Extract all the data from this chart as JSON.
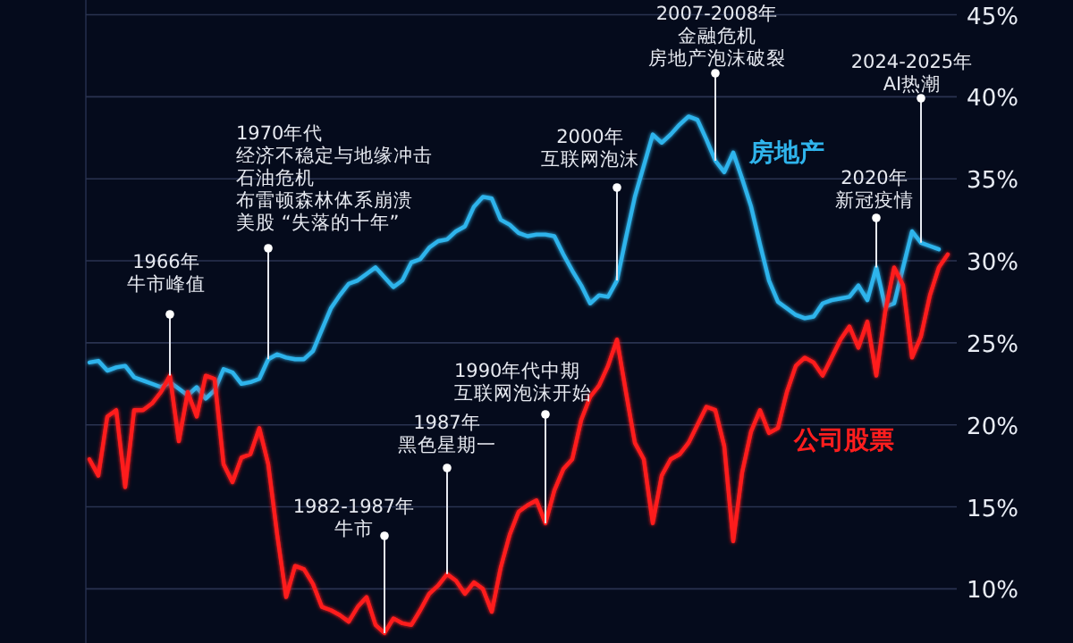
{
  "chart_data": {
    "type": "line",
    "categories": [
      null,
      null,
      null,
      null,
      null,
      null,
      null,
      null,
      null,
      null,
      null,
      null,
      null,
      null,
      null,
      null,
      null,
      null,
      null,
      null,
      null,
      null,
      null,
      null,
      null,
      null,
      null,
      null,
      null,
      null,
      null,
      null,
      null,
      null,
      null,
      null,
      null,
      null,
      null,
      null,
      null,
      null,
      null,
      null,
      null,
      null,
      null,
      null,
      null,
      null,
      null,
      null,
      null,
      null,
      null,
      null,
      null,
      null,
      null,
      null,
      null,
      null,
      null,
      null,
      null,
      null,
      null,
      null,
      null,
      null,
      null,
      null,
      null,
      null,
      null,
      null,
      null,
      null,
      null,
      null,
      null,
      null,
      null,
      null,
      null,
      null,
      null,
      null,
      null,
      null,
      null,
      null,
      null,
      null,
      null,
      null,
      null
    ],
    "series": [
      {
        "name": "房地产",
        "color": "#2fb4ec",
        "values": [
          23.8,
          23.9,
          23.3,
          23.5,
          23.6,
          22.9,
          22.7,
          22.5,
          22.3,
          22.6,
          22.2,
          21.8,
          22.3,
          21.6,
          22.1,
          23.4,
          23.2,
          22.5,
          22.6,
          22.8,
          24.0,
          24.3,
          24.1,
          24.0,
          24.0,
          24.5,
          25.8,
          27.1,
          27.9,
          28.6,
          28.8,
          29.2,
          29.6,
          29.0,
          28.4,
          28.8,
          29.9,
          30.1,
          30.8,
          31.2,
          31.3,
          31.8,
          32.1,
          33.3,
          33.9,
          33.8,
          32.5,
          32.2,
          31.7,
          31.5,
          31.6,
          31.6,
          31.5,
          30.4,
          29.4,
          28.5,
          27.4,
          27.9,
          27.8,
          28.8,
          31.4,
          33.9,
          35.8,
          37.7,
          37.2,
          37.7,
          38.3,
          38.8,
          38.6,
          37.4,
          36.1,
          35.4,
          36.6,
          35.0,
          33.3,
          31.0,
          28.8,
          27.5,
          27.1,
          26.7,
          26.5,
          26.6,
          27.4,
          27.6,
          27.7,
          27.8,
          28.5,
          27.6,
          29.6,
          27.2,
          27.4,
          29.6,
          31.8,
          31.1,
          30.9,
          30.7,
          null
        ]
      },
      {
        "name": "公司股票",
        "color": "#ff1e1e",
        "values": [
          17.9,
          16.9,
          20.5,
          20.9,
          16.2,
          20.9,
          20.9,
          21.3,
          22.0,
          23.0,
          19.0,
          22.0,
          20.5,
          23.0,
          22.8,
          17.6,
          16.5,
          18.0,
          18.2,
          19.8,
          17.6,
          13.3,
          9.5,
          11.4,
          11.2,
          10.3,
          8.9,
          8.7,
          8.4,
          8.0,
          8.9,
          9.5,
          7.8,
          7.3,
          8.2,
          7.9,
          7.8,
          8.7,
          9.7,
          10.2,
          10.9,
          10.5,
          9.7,
          10.4,
          10.0,
          8.6,
          11.3,
          13.3,
          14.7,
          15.1,
          15.4,
          14.0,
          16.0,
          17.3,
          17.9,
          20.3,
          21.7,
          22.4,
          23.6,
          25.2,
          22.0,
          18.9,
          17.9,
          14.0,
          16.9,
          17.9,
          18.2,
          18.9,
          20.0,
          21.1,
          20.9,
          18.7,
          12.9,
          17.1,
          19.6,
          20.9,
          19.5,
          19.8,
          22.0,
          23.6,
          24.1,
          23.8,
          23.0,
          24.1,
          25.2,
          26.0,
          24.7,
          26.3,
          23.0,
          26.9,
          29.6,
          28.5,
          24.1,
          25.4,
          27.9,
          29.6,
          30.4
        ]
      }
    ],
    "ylim": [
      6.7,
      45.9
    ],
    "yticks": [
      {
        "value": 10,
        "label": "10%"
      },
      {
        "value": 15,
        "label": "15%"
      },
      {
        "value": 20,
        "label": "20%"
      },
      {
        "value": 25,
        "label": "25%"
      },
      {
        "value": 30,
        "label": "30%"
      },
      {
        "value": 35,
        "label": "35%"
      },
      {
        "value": 40,
        "label": "40%"
      },
      {
        "value": 45,
        "label": "45%"
      }
    ],
    "tick_labels": "y",
    "grid": "y",
    "legend": false,
    "marker": "none",
    "line_style": "solid",
    "annotations": [
      "1966年",
      "牛市峰值",
      "1970年代",
      "经济不稳定与地缘冲击",
      "石油危机",
      "布雷顿森林体系崩溃",
      "美股 “失落的十年”",
      "1982-1987年",
      "牛市",
      "1987年",
      "黑色星期一",
      "1990年代中期",
      "互联网泡沫开始",
      "2000年",
      "互联网泡沫",
      "2007-2008年",
      "金融危机",
      "房地产泡沫破裂",
      "2020年",
      "新冠疫情",
      "2024-2025年",
      "AI热潮"
    ]
  }
}
